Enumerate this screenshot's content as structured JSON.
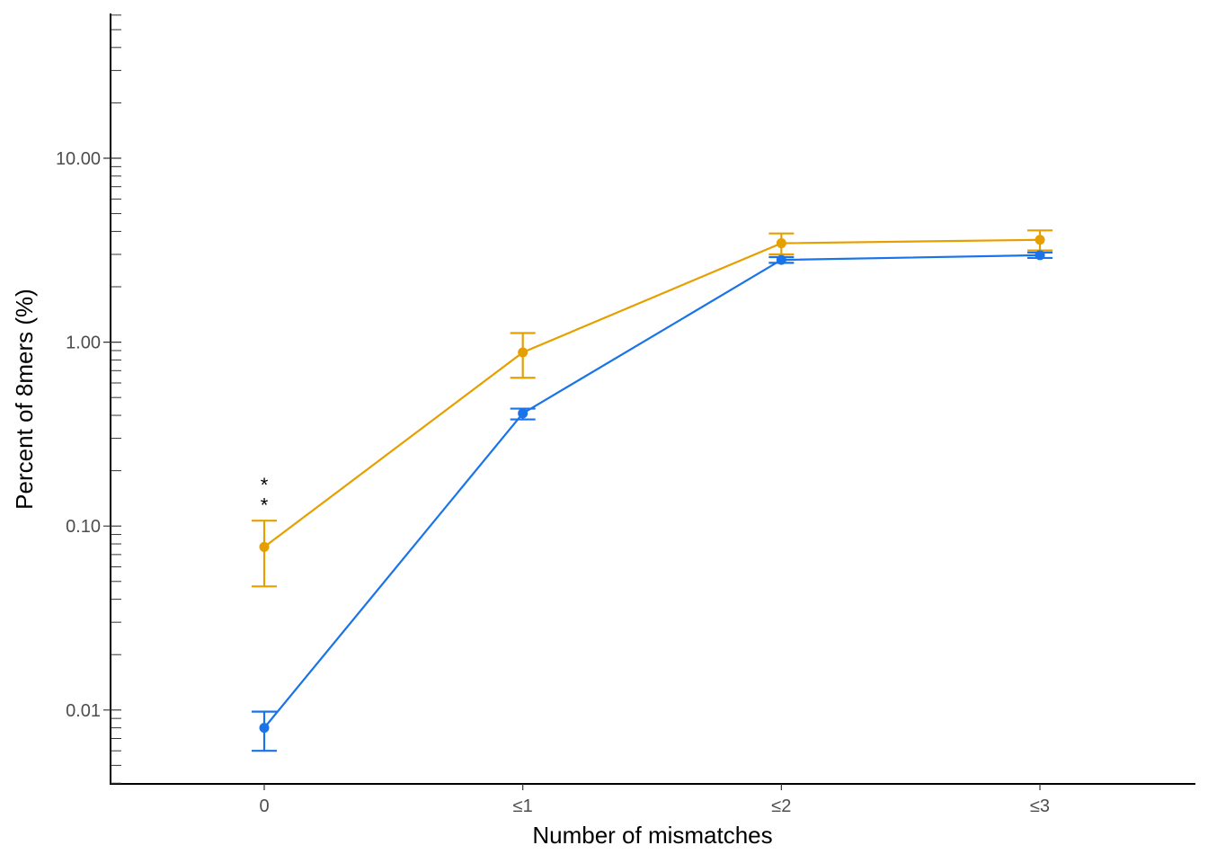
{
  "chart_data": {
    "type": "line",
    "xlabel": "Number of mismatches",
    "ylabel": "Percent of 8mers (%)",
    "categories": [
      "0",
      "≤1",
      "≤2",
      "≤3"
    ],
    "yscale": "log",
    "ylim": [
      0.004,
      60
    ],
    "yticks": [
      0.01,
      0.1,
      1,
      10
    ],
    "ytick_labels": [
      "0.01",
      "0.10",
      "1.00",
      "10.00"
    ],
    "grid": false,
    "legend": "none",
    "annotations": [
      {
        "category": "0",
        "y": 0.18,
        "text": "*"
      },
      {
        "category": "0",
        "y": 0.14,
        "text": "*"
      }
    ],
    "series": [
      {
        "color": "#E69F00",
        "values": [
          0.077,
          0.88,
          3.45,
          3.6
        ],
        "err_low": [
          0.047,
          0.64,
          3.0,
          3.15
        ],
        "err_high": [
          0.107,
          1.12,
          3.9,
          4.05
        ]
      },
      {
        "color": "#1A73E8",
        "values": [
          0.008,
          0.41,
          2.8,
          2.97
        ],
        "err_low": [
          0.006,
          0.38,
          2.7,
          2.87
        ],
        "err_high": [
          0.0098,
          0.435,
          2.9,
          3.07
        ]
      }
    ]
  }
}
